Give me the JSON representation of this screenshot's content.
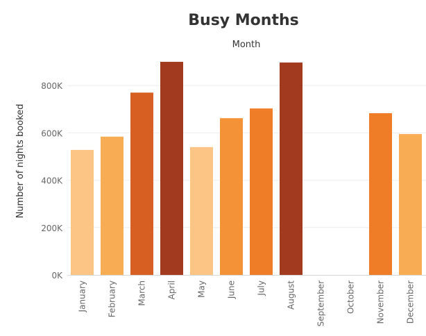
{
  "chart_data": {
    "type": "bar",
    "title": "Busy Months",
    "column_header": "Month",
    "xlabel": "",
    "ylabel": "Number of nights booked",
    "ylim": [
      0,
      950000
    ],
    "yticks": [
      0,
      200000,
      400000,
      600000,
      800000
    ],
    "ytick_labels": [
      "0K",
      "200K",
      "400K",
      "600K",
      "800K"
    ],
    "grid": "horizontal",
    "categories": [
      "January",
      "February",
      "March",
      "April",
      "May",
      "June",
      "July",
      "August",
      "September",
      "October",
      "November",
      "December"
    ],
    "values": [
      528000,
      584000,
      770000,
      900000,
      540000,
      662000,
      703000,
      897000,
      null,
      null,
      683000,
      595000
    ],
    "colors": [
      "#fdc585",
      "#f8ad55",
      "#d85f22",
      "#a23a1f",
      "#fdc585",
      "#f39237",
      "#ef7c26",
      "#a23a1f",
      null,
      null,
      "#ef7c26",
      "#f8ad55"
    ]
  }
}
